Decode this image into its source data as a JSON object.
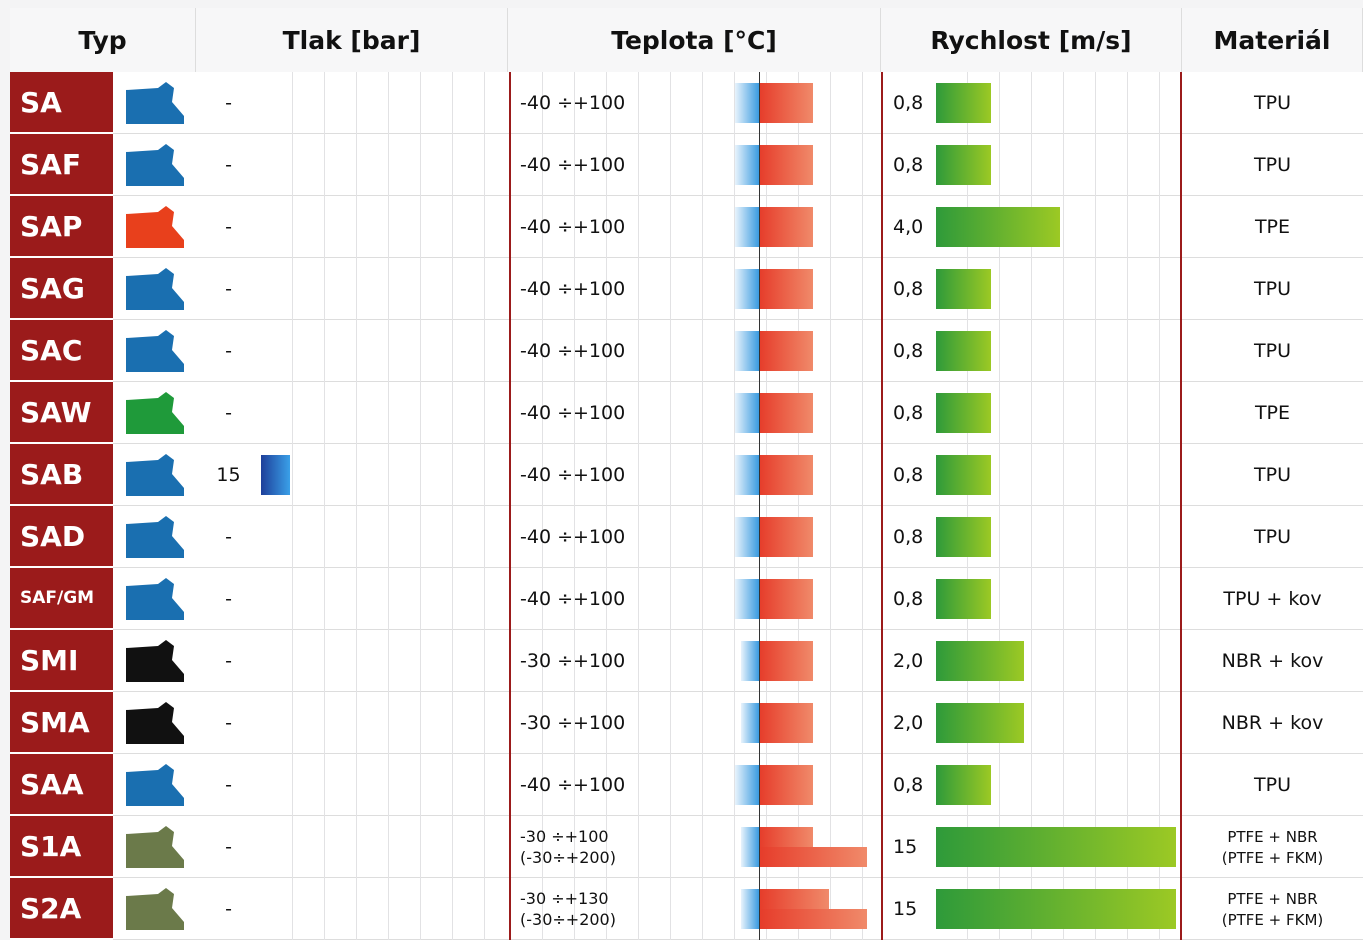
{
  "header": {
    "type": "Typ",
    "pressure": "Tlak [bar]",
    "temperature": "Teplota [°C]",
    "speed": "Rychlost [m/s]",
    "material": "Materiál"
  },
  "rows": [
    {
      "type": "SA",
      "pressure": "-",
      "temperature": [
        "-40 ÷+100"
      ],
      "speed": "0,8",
      "material": [
        "TPU"
      ]
    },
    {
      "type": "SAF",
      "pressure": "-",
      "temperature": [
        "-40 ÷+100"
      ],
      "speed": "0,8",
      "material": [
        "TPU"
      ]
    },
    {
      "type": "SAP",
      "pressure": "-",
      "temperature": [
        "-40 ÷+100"
      ],
      "speed": "4,0",
      "material": [
        "TPE"
      ]
    },
    {
      "type": "SAG",
      "pressure": "-",
      "temperature": [
        "-40 ÷+100"
      ],
      "speed": "0,8",
      "material": [
        "TPU"
      ]
    },
    {
      "type": "SAC",
      "pressure": "-",
      "temperature": [
        "-40 ÷+100"
      ],
      "speed": "0,8",
      "material": [
        "TPU"
      ]
    },
    {
      "type": "SAW",
      "pressure": "-",
      "temperature": [
        "-40 ÷+100"
      ],
      "speed": "0,8",
      "material": [
        "TPE"
      ]
    },
    {
      "type": "SAB",
      "pressure": "15",
      "temperature": [
        "-40 ÷+100"
      ],
      "speed": "0,8",
      "material": [
        "TPU"
      ]
    },
    {
      "type": "SAD",
      "pressure": "-",
      "temperature": [
        "-40 ÷+100"
      ],
      "speed": "0,8",
      "material": [
        "TPU"
      ]
    },
    {
      "type": "SAF/GM",
      "pressure": "-",
      "temperature": [
        "-40 ÷+100"
      ],
      "speed": "0,8",
      "material": [
        "TPU + kov"
      ]
    },
    {
      "type": "SMI",
      "pressure": "-",
      "temperature": [
        "-30 ÷+100"
      ],
      "speed": "2,0",
      "material": [
        "NBR + kov"
      ]
    },
    {
      "type": "SMA",
      "pressure": "-",
      "temperature": [
        "-30 ÷+100"
      ],
      "speed": "2,0",
      "material": [
        "NBR + kov"
      ]
    },
    {
      "type": "SAA",
      "pressure": "-",
      "temperature": [
        "-40 ÷+100"
      ],
      "speed": "0,8",
      "material": [
        "TPU"
      ]
    },
    {
      "type": "S1A",
      "pressure": "-",
      "temperature": [
        "-30 ÷+100",
        "(-30÷+200)"
      ],
      "speed": "15",
      "material": [
        "PTFE + NBR",
        "(PTFE + FKM)"
      ]
    },
    {
      "type": "S2A",
      "pressure": "-",
      "temperature": [
        "-30 ÷+130",
        "(-30÷+200)"
      ],
      "speed": "15",
      "material": [
        "PTFE + NBR",
        "(PTFE + FKM)"
      ]
    }
  ]
}
